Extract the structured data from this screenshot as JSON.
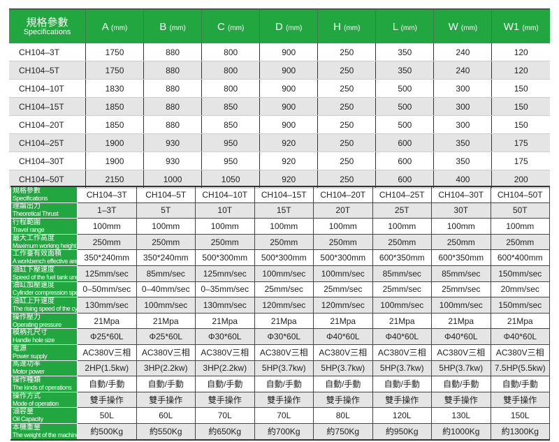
{
  "table1": {
    "header": {
      "label_cn": "規格參數",
      "label_en": "Specifications",
      "unit": "(mm)",
      "columns": [
        "A",
        "B",
        "C",
        "D",
        "H",
        "L",
        "W",
        "W1"
      ]
    },
    "rows": [
      [
        "CH104–3T",
        "1750",
        "880",
        "800",
        "900",
        "250",
        "350",
        "240",
        "120"
      ],
      [
        "CH104–5T",
        "1750",
        "880",
        "800",
        "900",
        "250",
        "350",
        "240",
        "120"
      ],
      [
        "CH104–10T",
        "1830",
        "880",
        "800",
        "900",
        "250",
        "500",
        "300",
        "150"
      ],
      [
        "CH104–15T",
        "1850",
        "880",
        "850",
        "900",
        "250",
        "500",
        "300",
        "150"
      ],
      [
        "CH104–20T",
        "1850",
        "880",
        "850",
        "900",
        "250",
        "500",
        "300",
        "150"
      ],
      [
        "CH104–25T",
        "1900",
        "930",
        "950",
        "920",
        "250",
        "600",
        "350",
        "175"
      ],
      [
        "CH104–30T",
        "1900",
        "930",
        "950",
        "920",
        "250",
        "600",
        "350",
        "175"
      ],
      [
        "CH104–50T",
        "2150",
        "1000",
        "1050",
        "920",
        "250",
        "600",
        "400",
        "200"
      ]
    ]
  },
  "table2": {
    "rows": [
      {
        "cn": "規格參數",
        "en": "Specifications",
        "values": [
          "CH104–3T",
          "CH104–5T",
          "CH104–10T",
          "CH104–15T",
          "CH104–20T",
          "CH104–25T",
          "CH104–30T",
          "CH104–50T"
        ]
      },
      {
        "cn": "理論出力",
        "en": "Theoretical Thrust",
        "values": [
          "1–3T",
          "5T",
          "10T",
          "15T",
          "20T",
          "25T",
          "30T",
          "50T"
        ]
      },
      {
        "cn": "行程範圍",
        "en": "Travel range",
        "values": [
          "100mm",
          "100mm",
          "100mm",
          "100mm",
          "100mm",
          "100mm",
          "100mm",
          "100mm"
        ]
      },
      {
        "cn": "最大工作高度",
        "en": "Maximum working height",
        "values": [
          "250mm",
          "250mm",
          "250mm",
          "250mm",
          "250mm",
          "250mm",
          "250mm",
          "250mm"
        ]
      },
      {
        "cn": "工作臺有效面積",
        "en": "A workbench effective area",
        "values": [
          "350*240mm",
          "350*240mm",
          "500*300mm",
          "500*300mm",
          "500*300mm",
          "600*350mm",
          "600*350mm",
          "600*400mm"
        ]
      },
      {
        "cn": "油缸下壓速度",
        "en": "Speed of the fuel tank under pressure",
        "values": [
          "125mm/sec",
          "85mm/sec",
          "125mm/sec",
          "100mm/sec",
          "100mm/sec",
          "85mm/sec",
          "85mm/sec",
          "150mm/sec"
        ]
      },
      {
        "cn": "油缸加壓速度",
        "en": "Cylinder compression speed",
        "values": [
          "0–50mm/sec",
          "0–40mm/sec",
          "0–35mm/sec",
          "25mm/sec",
          "25mm/sec",
          "25mm/sec",
          "25mm/sec",
          "20mm/sec"
        ]
      },
      {
        "cn": "油缸上升速度",
        "en": "The rising speed of the cylinder",
        "values": [
          "130mm/sec",
          "100mm/sec",
          "130mm/sec",
          "120mm/sec",
          "120mm/sec",
          "100mm/sec",
          "100mm/sec",
          "150mm/sec"
        ]
      },
      {
        "cn": "操作壓力",
        "en": "Operating pressure",
        "values": [
          "21Mpa",
          "21Mpa",
          "21Mpa",
          "21Mpa",
          "21Mpa",
          "21Mpa",
          "21Mpa",
          "21Mpa"
        ]
      },
      {
        "cn": "模柄孔尺寸",
        "en": "Handle hole size",
        "values": [
          "Φ25*60L",
          "Φ25*60L",
          "Φ30*60L",
          "Φ30*60L",
          "Φ40*60L",
          "Φ40*60L",
          "Φ40*60L",
          "Φ40*60L"
        ]
      },
      {
        "cn": "電源",
        "en": "Power supply",
        "values": [
          "AC380V三相",
          "AC380V三相",
          "AC380V三相",
          "AC380V三相",
          "AC380V三相",
          "AC380V三相",
          "AC380V三相",
          "AC380V三相"
        ]
      },
      {
        "cn": "馬達功率",
        "en": "Motor power",
        "values": [
          "2HP(1.5kw)",
          "3HP(2.2kw)",
          "3HP(2.2kw)",
          "5HP(3.7kw)",
          "5HP(3.7kw)",
          "5HP(3.7kw)",
          "5HP(3.7kw)",
          "7.5HP(5.5kw)"
        ]
      },
      {
        "cn": "操作種類",
        "en": "The kinds of operations",
        "values": [
          "自動/手動",
          "自動/手動",
          "自動/手動",
          "自動/手動",
          "自動/手動",
          "自動/手動",
          "自動/手動",
          "自動/手動"
        ]
      },
      {
        "cn": "操作方式",
        "en": "Mode of operation",
        "values": [
          "雙手操作",
          "雙手操作",
          "雙手操作",
          "雙手操作",
          "雙手操作",
          "雙手操作",
          "雙手操作",
          "雙手操作"
        ]
      },
      {
        "cn": "油容量",
        "en": "Oil Capacity",
        "values": [
          "50L",
          "60L",
          "70L",
          "70L",
          "80L",
          "120L",
          "130L",
          "150L"
        ]
      },
      {
        "cn": "本機重量",
        "en": "The weight of the machine",
        "values": [
          "約500Kg",
          "約550Kg",
          "約650Kg",
          "約700Kg",
          "約750Kg",
          "約950Kg",
          "約1000Kg",
          "約1300Kg"
        ]
      }
    ]
  },
  "colors": {
    "header_green": "#22a63f",
    "stripe_gray": "#e5e5e5"
  }
}
